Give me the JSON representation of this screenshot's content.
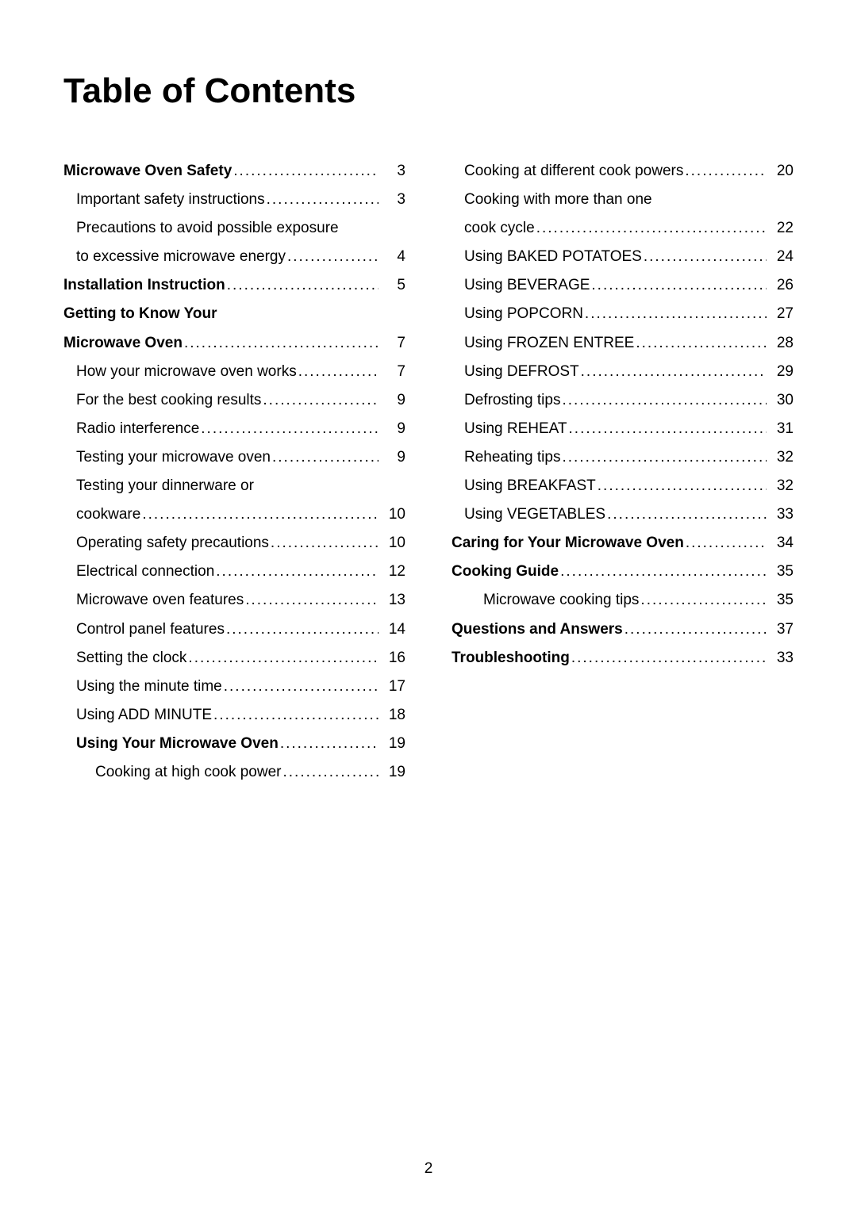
{
  "title": "Table of Contents",
  "page_number": "2",
  "text_color": "#000000",
  "background_color": "#ffffff",
  "font_family": "Arial, Helvetica, sans-serif",
  "title_fontsize": 44,
  "entry_fontsize": 19,
  "left": [
    {
      "label": "Microwave Oven Safety",
      "page": "3",
      "bold": true,
      "indent": 0,
      "dots": true
    },
    {
      "label": "Important safety instructions",
      "page": "3",
      "bold": false,
      "indent": 1,
      "dots": true
    },
    {
      "label": "Precautions to avoid possible exposure",
      "page": "",
      "bold": false,
      "indent": 1,
      "dots": false
    },
    {
      "label": "to excessive microwave energy",
      "page": "4",
      "bold": false,
      "indent": 1,
      "dots": true
    },
    {
      "label": "Installation Instruction",
      "page": "5",
      "bold": true,
      "indent": 0,
      "dots": true
    },
    {
      "label": "Getting to Know Your",
      "page": "",
      "bold": true,
      "indent": 0,
      "dots": false
    },
    {
      "label": "Microwave Oven",
      "page": "7",
      "bold": true,
      "indent": 0,
      "dots": true
    },
    {
      "label": "How your microwave oven works",
      "page": "7",
      "bold": false,
      "indent": 1,
      "dots": true
    },
    {
      "label": "For the best cooking results",
      "page": "9",
      "bold": false,
      "indent": 1,
      "dots": true
    },
    {
      "label": "Radio interference",
      "page": "9",
      "bold": false,
      "indent": 1,
      "dots": true
    },
    {
      "label": "Testing your microwave oven",
      "page": "9",
      "bold": false,
      "indent": 1,
      "dots": true
    },
    {
      "label": "Testing your dinnerware or",
      "page": "",
      "bold": false,
      "indent": 1,
      "dots": false
    },
    {
      "label": "cookware",
      "page": "10",
      "bold": false,
      "indent": 1,
      "dots": true
    },
    {
      "label": "Operating safety precautions",
      "page": "10",
      "bold": false,
      "indent": 1,
      "dots": true
    },
    {
      "label": "Electrical connection",
      "page": "12",
      "bold": false,
      "indent": 1,
      "dots": true
    },
    {
      "label": "Microwave oven features",
      "page": "13",
      "bold": false,
      "indent": 1,
      "dots": true
    },
    {
      "label": "Control panel features",
      "page": "14",
      "bold": false,
      "indent": 1,
      "dots": true
    },
    {
      "label": "Setting the clock",
      "page": "16",
      "bold": false,
      "indent": 1,
      "dots": true
    },
    {
      "label": "Using the minute time",
      "page": "17",
      "bold": false,
      "indent": 1,
      "dots": true
    },
    {
      "label": "Using ADD MINUTE",
      "page": "18",
      "bold": false,
      "indent": 1,
      "dots": true
    },
    {
      "label": "Using Your Microwave Oven",
      "page": "19",
      "bold": true,
      "indent": 1,
      "dots": true
    },
    {
      "label": "Cooking at high cook power",
      "page": "19",
      "bold": false,
      "indent": 2,
      "dots": true
    }
  ],
  "right": [
    {
      "label": "Cooking at different cook powers",
      "page": "20",
      "bold": false,
      "indent": 1,
      "dots": true
    },
    {
      "label": "Cooking with more than one",
      "page": "",
      "bold": false,
      "indent": 1,
      "dots": false
    },
    {
      "label": "cook cycle",
      "page": "22",
      "bold": false,
      "indent": 1,
      "dots": true
    },
    {
      "label": "Using BAKED POTATOES",
      "page": "24",
      "bold": false,
      "indent": 1,
      "dots": true
    },
    {
      "label": "Using BEVERAGE",
      "page": "26",
      "bold": false,
      "indent": 1,
      "dots": true
    },
    {
      "label": "Using POPCORN",
      "page": "27",
      "bold": false,
      "indent": 1,
      "dots": true
    },
    {
      "label": "Using FROZEN ENTREE",
      "page": "28",
      "bold": false,
      "indent": 1,
      "dots": true
    },
    {
      "label": "Using DEFROST",
      "page": "29",
      "bold": false,
      "indent": 1,
      "dots": true
    },
    {
      "label": "Defrosting tips",
      "page": "30",
      "bold": false,
      "indent": 1,
      "dots": true
    },
    {
      "label": "Using REHEAT",
      "page": "31",
      "bold": false,
      "indent": 1,
      "dots": true
    },
    {
      "label": "Reheating tips",
      "page": "32",
      "bold": false,
      "indent": 1,
      "dots": true
    },
    {
      "label": "Using BREAKFAST",
      "page": "32",
      "bold": false,
      "indent": 1,
      "dots": true
    },
    {
      "label": "Using VEGETABLES",
      "page": "33",
      "bold": false,
      "indent": 1,
      "dots": true
    },
    {
      "label": "Caring for Your Microwave Oven",
      "page": "34",
      "bold": true,
      "indent": 0,
      "dots": true
    },
    {
      "label": "Cooking Guide",
      "page": "35",
      "bold": true,
      "indent": 0,
      "dots": true
    },
    {
      "label": "Microwave cooking tips",
      "page": "35",
      "bold": false,
      "indent": 2,
      "dots": true
    },
    {
      "label": "Questions and Answers",
      "page": "37",
      "bold": true,
      "indent": 0,
      "dots": true
    },
    {
      "label": "Troubleshooting",
      "page": "33",
      "bold": true,
      "indent": 0,
      "dots": true
    }
  ]
}
